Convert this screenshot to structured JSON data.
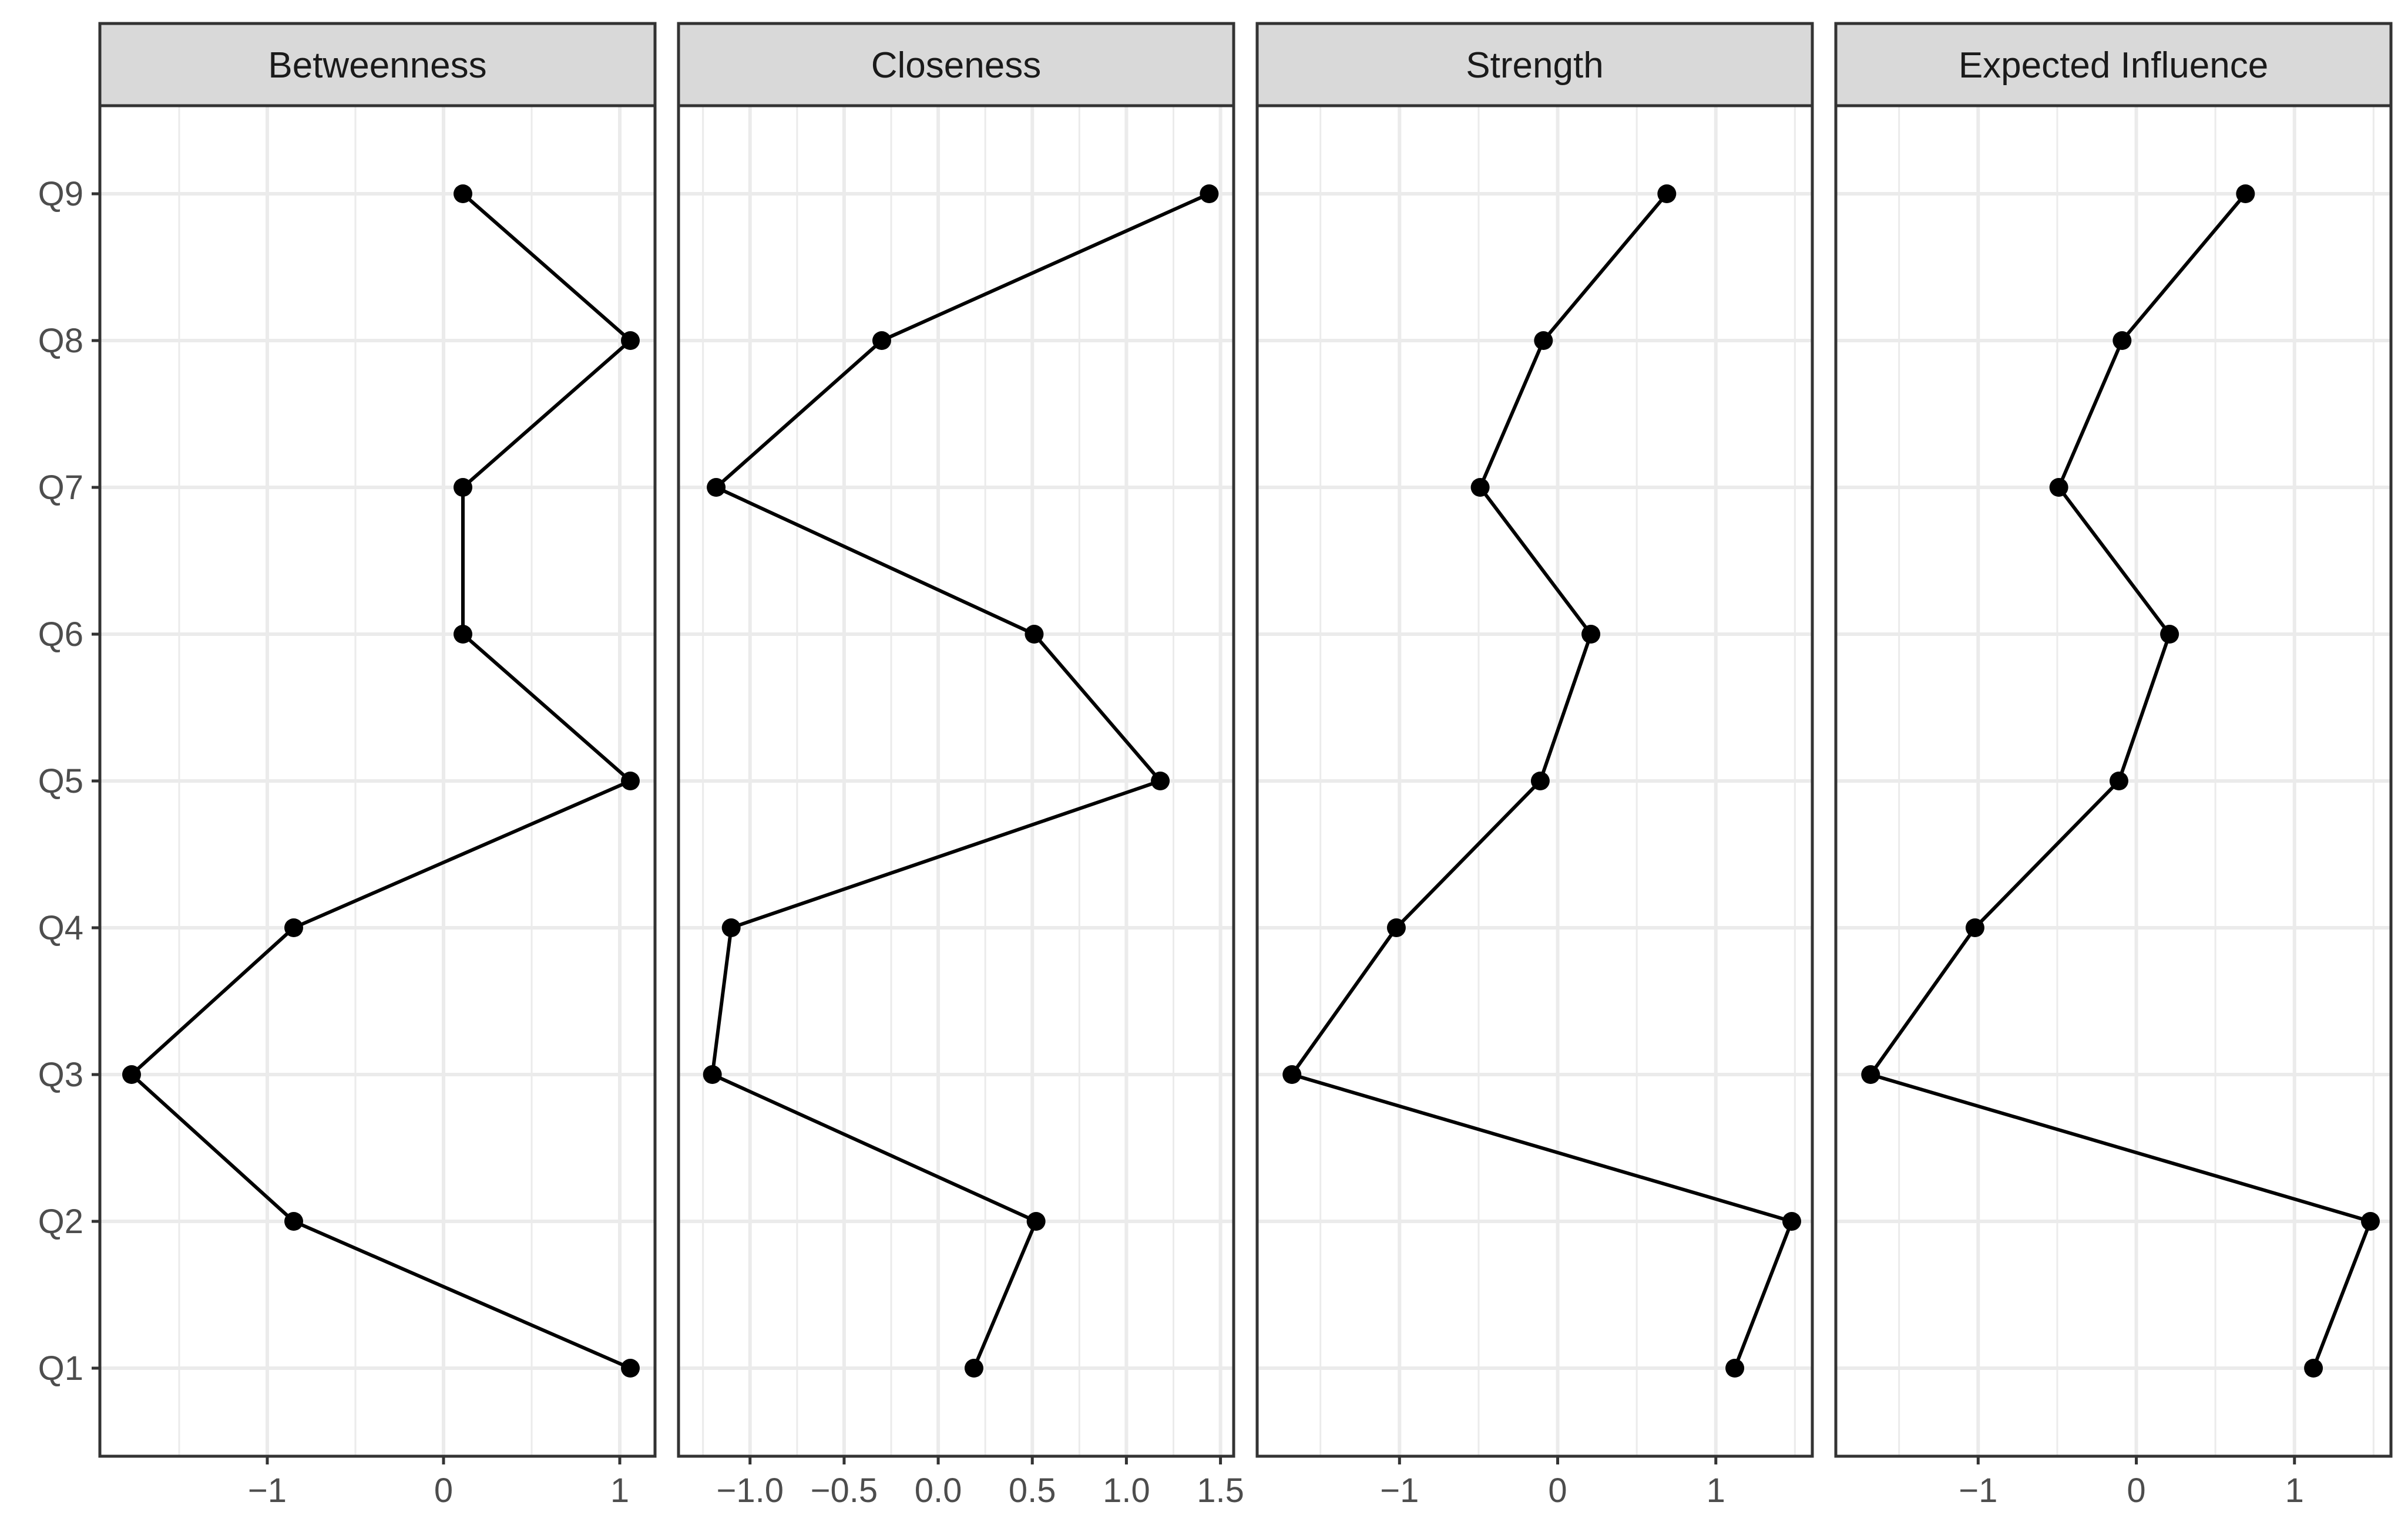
{
  "chart_data": {
    "type": "line",
    "layout": "facets",
    "colors": {
      "line": "#000000",
      "point": "#000000",
      "grid": "#ebebeb",
      "strip": "#d9d9d9",
      "border": "#333333"
    },
    "categories": [
      "Q1",
      "Q2",
      "Q3",
      "Q4",
      "Q5",
      "Q6",
      "Q7",
      "Q8",
      "Q9"
    ],
    "panels": [
      {
        "title": "Betweenness",
        "xlim": [
          -1.95,
          1.2
        ],
        "x_ticks": [
          -1,
          0,
          1
        ],
        "x_tick_labels": [
          "−1",
          "0",
          "1"
        ],
        "values": [
          1.06,
          -0.85,
          -1.77,
          -0.85,
          1.06,
          0.11,
          0.11,
          1.06,
          0.11
        ]
      },
      {
        "title": "Closeness",
        "xlim": [
          -1.38,
          1.57
        ],
        "x_ticks": [
          -1.0,
          -0.5,
          0.0,
          0.5,
          1.0,
          1.5
        ],
        "x_tick_labels": [
          "−1.0",
          "−0.5",
          "0.0",
          "0.5",
          "1.0",
          "1.5"
        ],
        "values": [
          0.19,
          0.52,
          -1.2,
          -1.1,
          1.18,
          0.51,
          -1.18,
          -0.3,
          1.44
        ]
      },
      {
        "title": "Strength",
        "xlim": [
          -1.9,
          1.61
        ],
        "x_ticks": [
          -1,
          0,
          1
        ],
        "x_tick_labels": [
          "−1",
          "0",
          "1"
        ],
        "values": [
          1.12,
          1.48,
          -1.68,
          -1.02,
          -0.11,
          0.21,
          -0.49,
          -0.09,
          0.69
        ]
      },
      {
        "title": "Expected Influence",
        "xlim": [
          -1.9,
          1.61
        ],
        "x_ticks": [
          -1,
          0,
          1
        ],
        "x_tick_labels": [
          "−1",
          "0",
          "1"
        ],
        "values": [
          1.12,
          1.48,
          -1.68,
          -1.02,
          -0.11,
          0.21,
          -0.49,
          -0.09,
          0.69
        ]
      }
    ]
  }
}
